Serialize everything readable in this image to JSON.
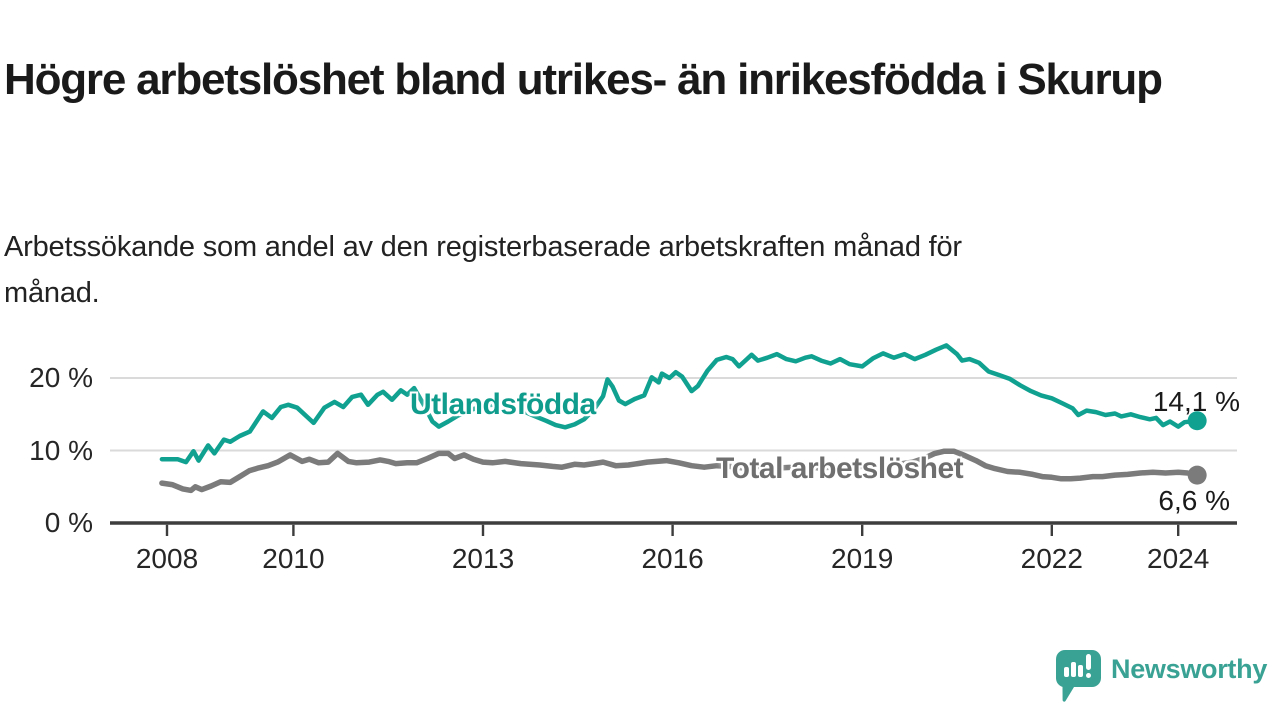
{
  "header": {
    "title": "Högre arbetslöshet bland utrikes- än inrikesfödda i Skurup",
    "subtitle": "Arbetssökande som andel av den registerbaserade arbetskraften månad för månad."
  },
  "chart_data": {
    "type": "line",
    "unit": "%",
    "grid": "horizontal-only",
    "x_axis": {
      "ticks": [
        2008,
        2010,
        2013,
        2016,
        2019,
        2022,
        2024
      ],
      "range": [
        2007.9,
        2024.95
      ]
    },
    "y_axis": {
      "ticks": [
        20,
        10,
        0
      ],
      "tick_suffix": " %",
      "range": [
        0,
        27
      ]
    },
    "series": [
      {
        "name": "Utlandsfödda",
        "color": "#10a191",
        "label_color": "#0f9c8d",
        "end_value": 14.1,
        "end_label": "14,1 %",
        "points": [
          [
            2007.92,
            8.8
          ],
          [
            2008.17,
            8.8
          ],
          [
            2008.3,
            8.4
          ],
          [
            2008.42,
            9.9
          ],
          [
            2008.5,
            8.6
          ],
          [
            2008.65,
            10.7
          ],
          [
            2008.75,
            9.6
          ],
          [
            2008.9,
            11.5
          ],
          [
            2009.0,
            11.2
          ],
          [
            2009.15,
            12.0
          ],
          [
            2009.31,
            12.6
          ],
          [
            2009.52,
            15.4
          ],
          [
            2009.66,
            14.5
          ],
          [
            2009.8,
            16.0
          ],
          [
            2009.92,
            16.3
          ],
          [
            2010.06,
            15.9
          ],
          [
            2010.32,
            13.8
          ],
          [
            2010.49,
            15.9
          ],
          [
            2010.65,
            16.7
          ],
          [
            2010.79,
            16.0
          ],
          [
            2010.93,
            17.4
          ],
          [
            2011.07,
            17.7
          ],
          [
            2011.18,
            16.3
          ],
          [
            2011.33,
            17.7
          ],
          [
            2011.42,
            18.1
          ],
          [
            2011.56,
            17.0
          ],
          [
            2011.7,
            18.3
          ],
          [
            2011.8,
            17.7
          ],
          [
            2011.91,
            18.6
          ],
          [
            2012.05,
            16.5
          ],
          [
            2012.2,
            14.0
          ],
          [
            2012.3,
            13.3
          ],
          [
            2012.45,
            14.0
          ],
          [
            2012.6,
            14.8
          ],
          [
            2012.8,
            15.6
          ],
          [
            2013.0,
            16.1
          ],
          [
            2013.2,
            16.4
          ],
          [
            2013.4,
            16.2
          ],
          [
            2013.6,
            15.6
          ],
          [
            2013.8,
            14.8
          ],
          [
            2014.0,
            14.1
          ],
          [
            2014.15,
            13.5
          ],
          [
            2014.3,
            13.2
          ],
          [
            2014.45,
            13.6
          ],
          [
            2014.6,
            14.3
          ],
          [
            2014.75,
            15.6
          ],
          [
            2014.9,
            17.5
          ],
          [
            2014.97,
            19.8
          ],
          [
            2015.05,
            18.8
          ],
          [
            2015.15,
            16.9
          ],
          [
            2015.25,
            16.4
          ],
          [
            2015.4,
            17.1
          ],
          [
            2015.55,
            17.6
          ],
          [
            2015.67,
            20.1
          ],
          [
            2015.78,
            19.4
          ],
          [
            2015.83,
            20.6
          ],
          [
            2015.95,
            20.0
          ],
          [
            2016.05,
            20.8
          ],
          [
            2016.15,
            20.2
          ],
          [
            2016.3,
            18.2
          ],
          [
            2016.4,
            18.9
          ],
          [
            2016.55,
            21.0
          ],
          [
            2016.7,
            22.5
          ],
          [
            2016.85,
            22.9
          ],
          [
            2016.95,
            22.6
          ],
          [
            2017.05,
            21.6
          ],
          [
            2017.15,
            22.4
          ],
          [
            2017.25,
            23.2
          ],
          [
            2017.35,
            22.4
          ],
          [
            2017.5,
            22.8
          ],
          [
            2017.65,
            23.3
          ],
          [
            2017.8,
            22.6
          ],
          [
            2017.95,
            22.3
          ],
          [
            2018.1,
            22.8
          ],
          [
            2018.2,
            23.0
          ],
          [
            2018.35,
            22.4
          ],
          [
            2018.5,
            22.0
          ],
          [
            2018.65,
            22.6
          ],
          [
            2018.8,
            21.9
          ],
          [
            2019.0,
            21.6
          ],
          [
            2019.17,
            22.7
          ],
          [
            2019.33,
            23.4
          ],
          [
            2019.5,
            22.8
          ],
          [
            2019.67,
            23.3
          ],
          [
            2019.83,
            22.6
          ],
          [
            2020.0,
            23.2
          ],
          [
            2020.17,
            23.9
          ],
          [
            2020.33,
            24.5
          ],
          [
            2020.5,
            23.3
          ],
          [
            2020.58,
            22.4
          ],
          [
            2020.7,
            22.6
          ],
          [
            2020.85,
            22.1
          ],
          [
            2021.0,
            20.9
          ],
          [
            2021.17,
            20.4
          ],
          [
            2021.33,
            19.9
          ],
          [
            2021.5,
            19.0
          ],
          [
            2021.67,
            18.2
          ],
          [
            2021.83,
            17.6
          ],
          [
            2022.0,
            17.2
          ],
          [
            2022.17,
            16.5
          ],
          [
            2022.33,
            15.8
          ],
          [
            2022.42,
            14.9
          ],
          [
            2022.55,
            15.5
          ],
          [
            2022.7,
            15.3
          ],
          [
            2022.85,
            14.9
          ],
          [
            2023.0,
            15.1
          ],
          [
            2023.1,
            14.7
          ],
          [
            2023.25,
            15.0
          ],
          [
            2023.4,
            14.6
          ],
          [
            2023.55,
            14.3
          ],
          [
            2023.65,
            14.5
          ],
          [
            2023.76,
            13.5
          ],
          [
            2023.87,
            14.0
          ],
          [
            2024.0,
            13.3
          ],
          [
            2024.1,
            13.9
          ],
          [
            2024.3,
            14.1
          ]
        ]
      },
      {
        "name": "Total arbetslöshet",
        "color": "#7b7b7b",
        "label_color": "#6f6f6f",
        "end_value": 6.6,
        "end_label": "6,6 %",
        "points": [
          [
            2007.92,
            5.5
          ],
          [
            2008.08,
            5.3
          ],
          [
            2008.25,
            4.7
          ],
          [
            2008.38,
            4.5
          ],
          [
            2008.45,
            5.0
          ],
          [
            2008.55,
            4.6
          ],
          [
            2008.7,
            5.1
          ],
          [
            2008.85,
            5.7
          ],
          [
            2009.0,
            5.6
          ],
          [
            2009.15,
            6.4
          ],
          [
            2009.3,
            7.2
          ],
          [
            2009.45,
            7.6
          ],
          [
            2009.6,
            7.9
          ],
          [
            2009.75,
            8.4
          ],
          [
            2009.95,
            9.4
          ],
          [
            2010.14,
            8.5
          ],
          [
            2010.25,
            8.8
          ],
          [
            2010.4,
            8.3
          ],
          [
            2010.55,
            8.4
          ],
          [
            2010.7,
            9.6
          ],
          [
            2010.87,
            8.5
          ],
          [
            2011.0,
            8.3
          ],
          [
            2011.2,
            8.4
          ],
          [
            2011.37,
            8.7
          ],
          [
            2011.5,
            8.5
          ],
          [
            2011.62,
            8.2
          ],
          [
            2011.8,
            8.3
          ],
          [
            2011.95,
            8.3
          ],
          [
            2012.12,
            8.9
          ],
          [
            2012.3,
            9.6
          ],
          [
            2012.45,
            9.6
          ],
          [
            2012.55,
            8.9
          ],
          [
            2012.7,
            9.4
          ],
          [
            2012.85,
            8.8
          ],
          [
            2013.0,
            8.4
          ],
          [
            2013.15,
            8.3
          ],
          [
            2013.35,
            8.5
          ],
          [
            2013.6,
            8.2
          ],
          [
            2013.9,
            8.0
          ],
          [
            2014.1,
            7.8
          ],
          [
            2014.25,
            7.7
          ],
          [
            2014.45,
            8.1
          ],
          [
            2014.6,
            8.0
          ],
          [
            2014.75,
            8.2
          ],
          [
            2014.9,
            8.4
          ],
          [
            2015.1,
            7.9
          ],
          [
            2015.3,
            8.0
          ],
          [
            2015.45,
            8.2
          ],
          [
            2015.6,
            8.4
          ],
          [
            2015.9,
            8.6
          ],
          [
            2016.1,
            8.3
          ],
          [
            2016.3,
            7.9
          ],
          [
            2016.5,
            7.7
          ],
          [
            2016.7,
            7.9
          ],
          [
            2016.9,
            7.8
          ],
          [
            2017.1,
            7.6
          ],
          [
            2017.3,
            7.7
          ],
          [
            2017.5,
            7.8
          ],
          [
            2017.7,
            7.6
          ],
          [
            2017.9,
            7.7
          ],
          [
            2018.1,
            7.8
          ],
          [
            2018.3,
            7.6
          ],
          [
            2018.5,
            7.7
          ],
          [
            2018.7,
            7.8
          ],
          [
            2018.9,
            7.7
          ],
          [
            2019.1,
            7.9
          ],
          [
            2019.3,
            7.8
          ],
          [
            2019.5,
            8.0
          ],
          [
            2019.8,
            8.4
          ],
          [
            2020.0,
            9.0
          ],
          [
            2020.15,
            9.6
          ],
          [
            2020.3,
            9.9
          ],
          [
            2020.45,
            9.9
          ],
          [
            2020.6,
            9.4
          ],
          [
            2020.8,
            8.6
          ],
          [
            2020.95,
            7.9
          ],
          [
            2021.1,
            7.5
          ],
          [
            2021.3,
            7.1
          ],
          [
            2021.5,
            7.0
          ],
          [
            2021.7,
            6.7
          ],
          [
            2021.85,
            6.4
          ],
          [
            2022.0,
            6.3
          ],
          [
            2022.15,
            6.1
          ],
          [
            2022.3,
            6.1
          ],
          [
            2022.45,
            6.2
          ],
          [
            2022.65,
            6.4
          ],
          [
            2022.8,
            6.4
          ],
          [
            2023.0,
            6.6
          ],
          [
            2023.2,
            6.7
          ],
          [
            2023.4,
            6.9
          ],
          [
            2023.6,
            7.0
          ],
          [
            2023.8,
            6.9
          ],
          [
            2024.0,
            7.0
          ],
          [
            2024.15,
            6.9
          ],
          [
            2024.3,
            6.6
          ]
        ]
      }
    ]
  },
  "branding": {
    "logo_text": "Newsworthy",
    "logo_color": "#3aa294",
    "logo_icon": "bar-chart-speech-bubble-icon"
  },
  "colors": {
    "background": "#ffffff",
    "title_text": "#1a1a1a",
    "axis_line": "#3d3d3d",
    "gridline": "#dadada",
    "axis_text": "#262626",
    "accent_teal": "#10a191",
    "series_gray": "#7b7b7b"
  }
}
